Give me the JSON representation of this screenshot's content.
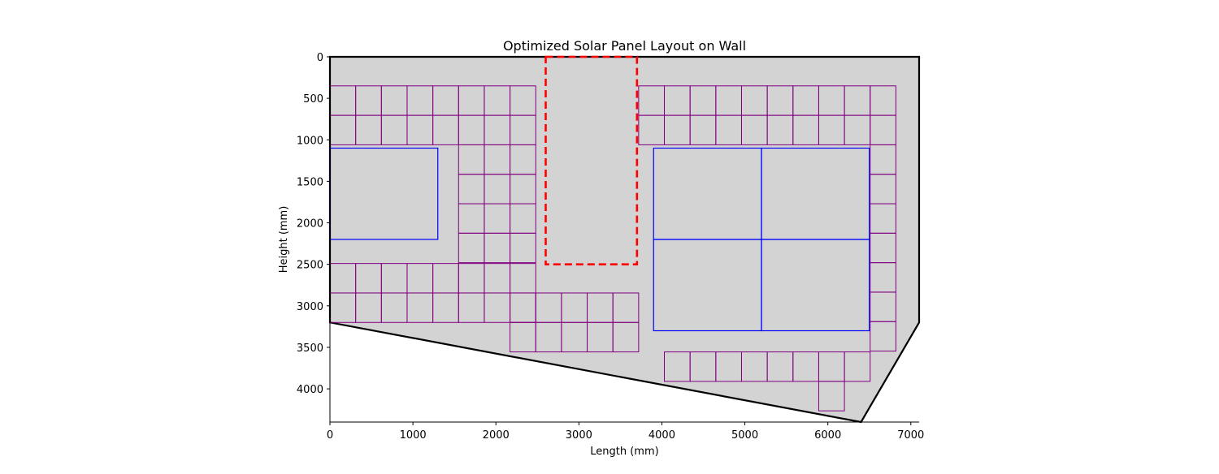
{
  "chart_data": {
    "type": "layout",
    "title": "Optimized Solar Panel Layout on Wall",
    "xlabel": "Length (mm)",
    "ylabel": "Height (mm)",
    "xlim": [
      0,
      7100
    ],
    "ylim": [
      4400,
      0
    ],
    "y_inverted": true,
    "xticks": [
      0,
      1000,
      2000,
      3000,
      4000,
      5000,
      6000,
      7000
    ],
    "yticks": [
      0,
      500,
      1000,
      1500,
      2000,
      2500,
      3000,
      3500,
      4000
    ],
    "grid": false,
    "colors": {
      "wall_fill": "#d3d3d3",
      "wall_edge": "#000000",
      "small_panel": "#800080",
      "large_panel": "#0000ff",
      "exclusion": "#ff0000"
    },
    "wall_polygon": [
      [
        0,
        0
      ],
      [
        7100,
        0
      ],
      [
        7100,
        3200
      ],
      [
        6400,
        4400
      ],
      [
        0,
        3200
      ]
    ],
    "exclusion_zone": {
      "x": 2600,
      "y": 0,
      "w": 1100,
      "h": 2500
    },
    "small_panel_size": {
      "w": 310,
      "h": 355
    },
    "large_panel_size": {
      "w": 1300,
      "h": 1100
    },
    "small_panel_groups": [
      {
        "x0": 0,
        "y0": 350,
        "cols": 8,
        "rows": 2
      },
      {
        "x0": 1550,
        "y0": 1060,
        "cols": 3,
        "rows": 4
      },
      {
        "x0": 0,
        "y0": 2490,
        "cols": 8,
        "rows": 2
      },
      {
        "x0": 2170,
        "y0": 2845,
        "cols": 5,
        "rows": 2
      },
      {
        "x0": 3720,
        "y0": 350,
        "cols": 10,
        "rows": 2
      },
      {
        "x0": 6510,
        "y0": 1060,
        "cols": 1,
        "rows": 7
      },
      {
        "x0": 4030,
        "y0": 3555,
        "cols": 8,
        "rows": 1
      },
      {
        "x0": 5890,
        "y0": 3910,
        "cols": 1,
        "rows": 1
      }
    ],
    "large_panels": [
      {
        "x": 0,
        "y": 1100
      },
      {
        "x": 3900,
        "y": 1100
      },
      {
        "x": 5200,
        "y": 1100
      },
      {
        "x": 3900,
        "y": 2200
      },
      {
        "x": 5200,
        "y": 2200
      }
    ]
  }
}
